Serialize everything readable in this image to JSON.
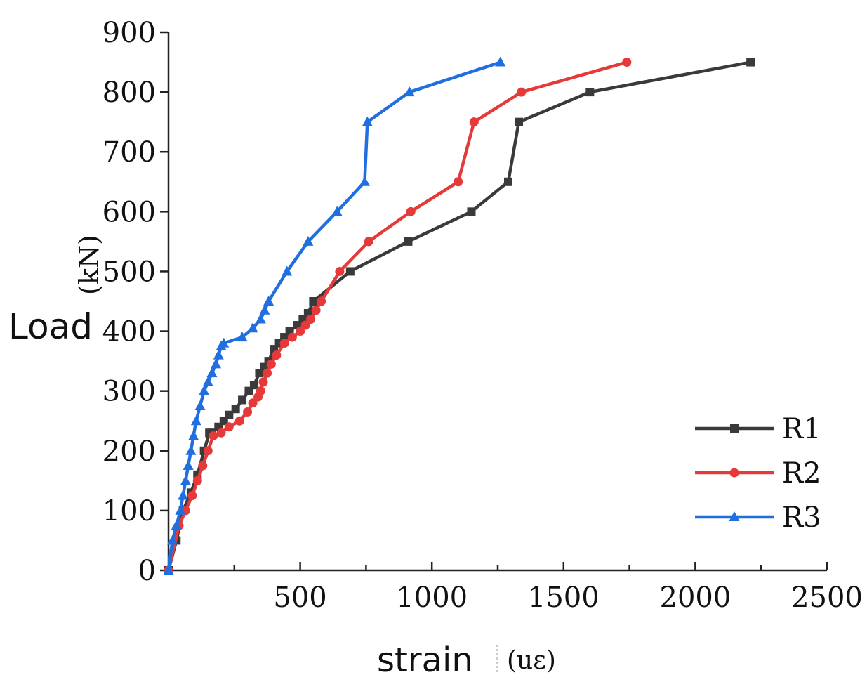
{
  "chart_data": {
    "type": "line",
    "title": "",
    "ylabel": "Load",
    "ylabel_unit": "(kN)",
    "xlabel": "strain",
    "xlabel_unit": "(uε)",
    "xlim": [
      0,
      2500
    ],
    "ylim": [
      0,
      900
    ],
    "xticks": [
      500,
      1000,
      1500,
      2000,
      2500
    ],
    "yticks": [
      0,
      100,
      200,
      300,
      400,
      500,
      600,
      700,
      800,
      900
    ],
    "legend_position": "bottom-right",
    "series": [
      {
        "name": "R1",
        "color": "#3a3a3a",
        "marker": "square",
        "x": [
          0,
          30,
          55,
          85,
          110,
          135,
          155,
          165,
          190,
          210,
          230,
          255,
          280,
          305,
          325,
          345,
          365,
          380,
          400,
          420,
          440,
          460,
          490,
          510,
          530,
          550,
          690,
          910,
          1150,
          1290,
          1330,
          1600,
          2210
        ],
        "y": [
          0,
          50,
          100,
          130,
          160,
          200,
          230,
          230,
          240,
          250,
          260,
          270,
          285,
          300,
          310,
          330,
          340,
          350,
          370,
          380,
          390,
          400,
          410,
          420,
          430,
          450,
          500,
          550,
          600,
          650,
          750,
          800,
          850
        ]
      },
      {
        "name": "R2",
        "color": "#e63939",
        "marker": "circle",
        "x": [
          0,
          40,
          65,
          90,
          110,
          130,
          150,
          170,
          200,
          230,
          270,
          300,
          320,
          340,
          350,
          360,
          375,
          390,
          410,
          440,
          470,
          500,
          520,
          540,
          560,
          580,
          650,
          760,
          920,
          1100,
          1160,
          1340,
          1740
        ],
        "y": [
          0,
          75,
          100,
          125,
          150,
          175,
          200,
          225,
          230,
          240,
          250,
          265,
          280,
          290,
          300,
          315,
          330,
          345,
          360,
          380,
          390,
          400,
          410,
          420,
          435,
          450,
          500,
          550,
          600,
          650,
          750,
          800,
          850
        ]
      },
      {
        "name": "R3",
        "color": "#1f6fe0",
        "marker": "triangle",
        "x": [
          0,
          15,
          30,
          45,
          55,
          65,
          75,
          85,
          95,
          105,
          120,
          135,
          150,
          165,
          180,
          190,
          200,
          210,
          280,
          320,
          350,
          365,
          380,
          450,
          530,
          640,
          745,
          755,
          915,
          1260
        ],
        "y": [
          0,
          50,
          75,
          100,
          125,
          150,
          175,
          200,
          225,
          250,
          275,
          300,
          315,
          330,
          345,
          360,
          375,
          380,
          390,
          405,
          420,
          435,
          450,
          500,
          550,
          600,
          650,
          750,
          800,
          850
        ]
      }
    ]
  }
}
